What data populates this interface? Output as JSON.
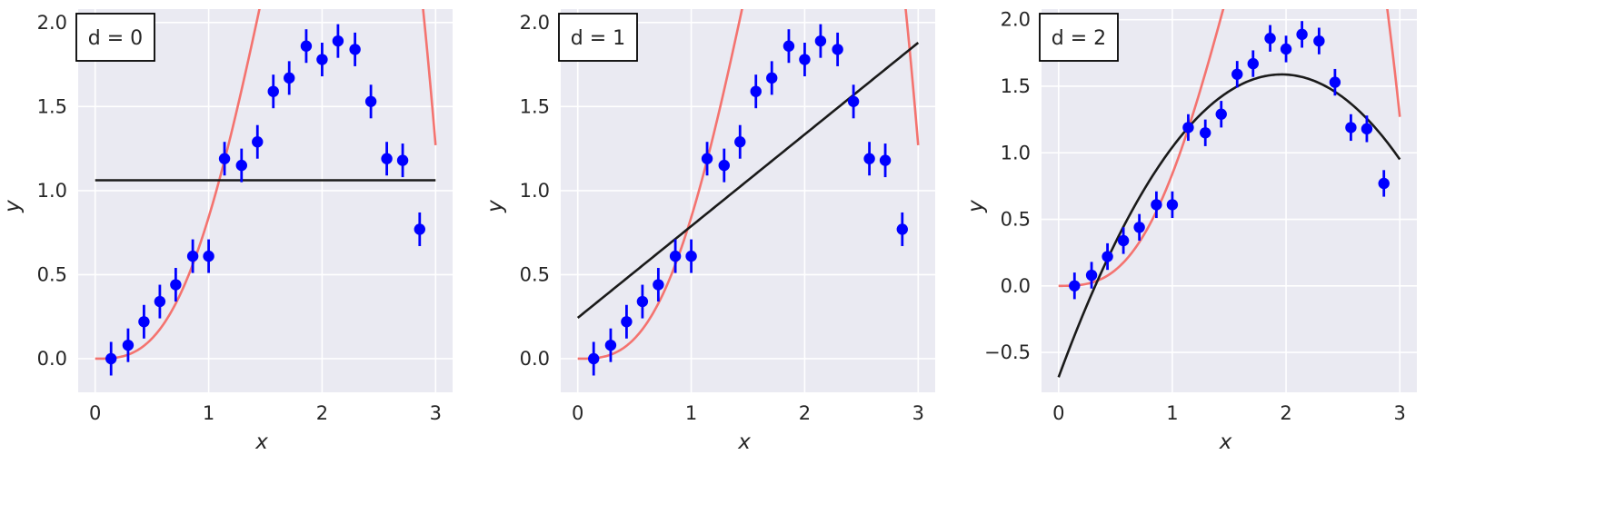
{
  "chart_data": [
    {
      "type": "scatter",
      "legend_box": "d = 0",
      "legend_placement": "top-left",
      "xlabel": "x",
      "ylabel": "y",
      "xlim": [
        -0.15,
        3.15
      ],
      "ylim": [
        -0.2,
        2.08
      ],
      "xticks": [
        0,
        1,
        2,
        3
      ],
      "xtick_labels": [
        "0",
        "1",
        "2",
        "3"
      ],
      "yticks": [
        0.0,
        0.5,
        1.0,
        1.5,
        2.0
      ],
      "ytick_labels": [
        "0.0",
        "0.5",
        "1.0",
        "1.5",
        "2.0"
      ],
      "grid": true,
      "fit_degree": 0
    },
    {
      "type": "scatter",
      "legend_box": "d = 1",
      "legend_placement": "top-left",
      "xlabel": "x",
      "ylabel": "y",
      "xlim": [
        -0.15,
        3.15
      ],
      "ylim": [
        -0.2,
        2.08
      ],
      "xticks": [
        0,
        1,
        2,
        3
      ],
      "xtick_labels": [
        "0",
        "1",
        "2",
        "3"
      ],
      "yticks": [
        0.0,
        0.5,
        1.0,
        1.5,
        2.0
      ],
      "ytick_labels": [
        "0.0",
        "0.5",
        "1.0",
        "1.5",
        "2.0"
      ],
      "grid": true,
      "fit_degree": 1
    },
    {
      "type": "scatter",
      "legend_box": "d = 2",
      "legend_placement": "top-left",
      "xlabel": "x",
      "ylabel": "y",
      "xlim": [
        -0.15,
        3.15
      ],
      "ylim": [
        -0.8,
        2.08
      ],
      "xticks": [
        0,
        1,
        2,
        3
      ],
      "xtick_labels": [
        "0",
        "1",
        "2",
        "3"
      ],
      "yticks": [
        -0.5,
        0.0,
        0.5,
        1.0,
        1.5,
        2.0
      ],
      "ytick_labels": [
        "−0.5",
        "0.0",
        "0.5",
        "1.0",
        "1.5",
        "2.0"
      ],
      "grid": true,
      "fit_degree": 2
    }
  ],
  "shared_data": {
    "points_x": [
      0.14,
      0.29,
      0.43,
      0.57,
      0.71,
      0.86,
      1.0,
      1.14,
      1.29,
      1.43,
      1.57,
      1.71,
      1.86,
      2.0,
      2.14,
      2.29,
      2.43,
      2.57,
      2.71,
      2.86
    ],
    "points_y": [
      0.0,
      0.08,
      0.22,
      0.34,
      0.44,
      0.61,
      0.61,
      1.19,
      1.15,
      1.29,
      1.59,
      1.67,
      1.86,
      1.78,
      1.89,
      1.84,
      1.53,
      1.19,
      1.18,
      0.77
    ],
    "error": 0.1,
    "true_curve": "y = x^2 · sin(x)",
    "true_curve_x_range": [
      0,
      3
    ]
  },
  "colors": {
    "background": "#eaeaf2",
    "grid": "#ffffff",
    "points": "#0000ff",
    "true_curve": "#f4736f",
    "fit_line": "#1a1a1a",
    "legend_border": "#000000",
    "text": "#262626"
  }
}
